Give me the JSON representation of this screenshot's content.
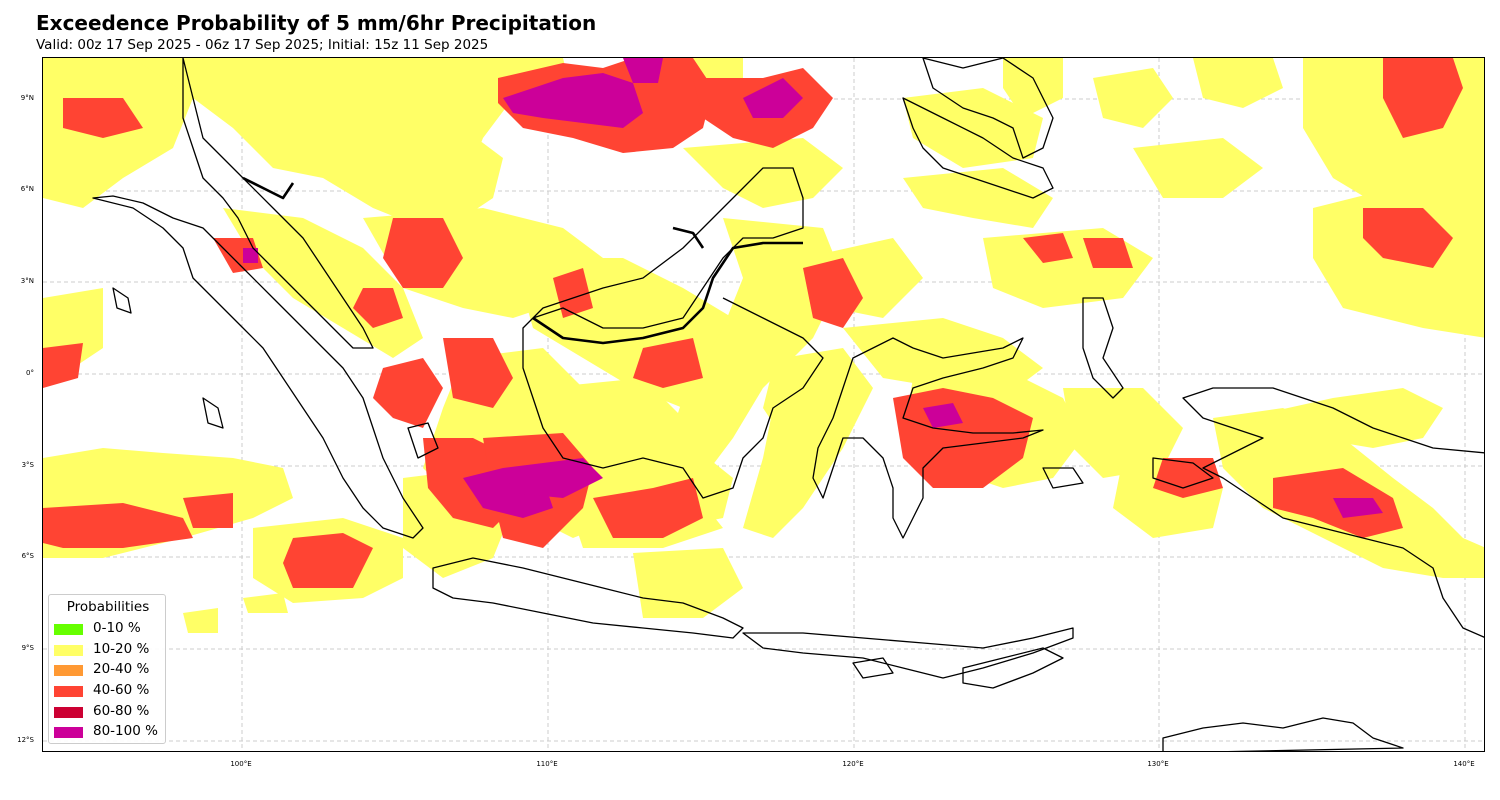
{
  "header": {
    "title": "Exceedence Probability of 5 mm/6hr Precipitation",
    "subtitle": "Valid: 00z 17 Sep 2025 - 06z 17 Sep 2025; Initial: 15z 11 Sep 2025"
  },
  "axes": {
    "lat_labels": [
      "9°N",
      "6°N",
      "3°N",
      "0°",
      "3°S",
      "6°S",
      "9°S",
      "12°S"
    ],
    "lon_labels": [
      "100°E",
      "110°E",
      "120°E",
      "130°E",
      "140°E"
    ]
  },
  "legend": {
    "title": "Probabilities",
    "items": [
      {
        "label": "0-10 %",
        "color": "#66ff00"
      },
      {
        "label": "10-20 %",
        "color": "#ffff66"
      },
      {
        "label": "20-40 %",
        "color": "#ff9933"
      },
      {
        "label": "40-60 %",
        "color": "#ff4433"
      },
      {
        "label": "60-80 %",
        "color": "#cc0033"
      },
      {
        "label": "80-100 %",
        "color": "#cc0099"
      }
    ]
  },
  "colors": {
    "coastline": "#000000",
    "gridline": "#cccccc",
    "p10_20": "#ffff66",
    "p40_60": "#ff4433",
    "p80_100": "#cc0099"
  }
}
